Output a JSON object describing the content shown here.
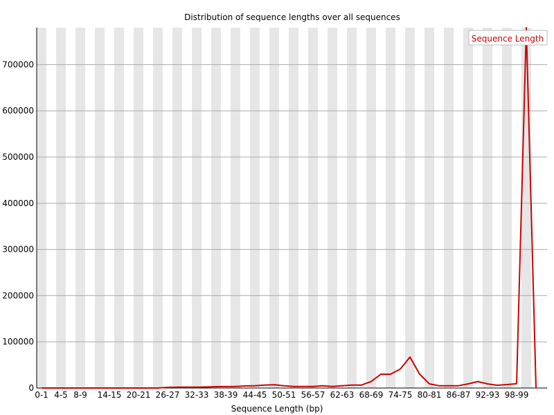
{
  "chart_data": {
    "type": "line",
    "title": "Distribution of sequence lengths over all sequences",
    "xlabel": "Sequence Length (bp)",
    "ylabel": "",
    "ylim": [
      0,
      780000
    ],
    "yticks": [
      0,
      100000,
      200000,
      300000,
      400000,
      500000,
      600000,
      700000
    ],
    "grid": "horizontal",
    "legend_position": "top-right",
    "categories": [
      "0-1",
      "2-3",
      "4-5",
      "6-7",
      "8-9",
      "10-11",
      "12-13",
      "14-15",
      "16-17",
      "18-19",
      "20-21",
      "22-23",
      "24-25",
      "26-27",
      "28-29",
      "30-31",
      "32-33",
      "34-35",
      "36-37",
      "38-39",
      "40-41",
      "42-43",
      "44-45",
      "46-47",
      "48-49",
      "50-51",
      "52-53",
      "54-55",
      "56-57",
      "58-59",
      "60-61",
      "62-63",
      "64-65",
      "66-67",
      "68-69",
      "70-71",
      "72-73",
      "74-75",
      "76-77",
      "78-79",
      "80-81",
      "82-83",
      "84-85",
      "86-87",
      "88-89",
      "90-91",
      "92-93",
      "94-95",
      "96-97",
      "98-99",
      "100-101",
      "102"
    ],
    "labeled_categories": [
      "0-1",
      "4-5",
      "8-9",
      "14-15",
      "20-21",
      "26-27",
      "32-33",
      "38-39",
      "44-45",
      "50-51",
      "56-57",
      "62-63",
      "68-69",
      "74-75",
      "80-81",
      "86-87",
      "92-93",
      "98-99"
    ],
    "series": [
      {
        "name": "Sequence Length",
        "color": "#cc0000",
        "values": [
          0,
          0,
          0,
          0,
          0,
          0,
          0,
          0,
          0,
          0,
          0,
          0,
          0,
          1500,
          1800,
          2000,
          2000,
          2200,
          3000,
          3200,
          3500,
          4500,
          5000,
          6500,
          7000,
          5000,
          3500,
          3500,
          3500,
          5000,
          3500,
          5000,
          6500,
          6500,
          14000,
          30000,
          30000,
          41000,
          67000,
          30000,
          9000,
          5000,
          5000,
          5000,
          9000,
          14000,
          9000,
          6000,
          7500,
          9500,
          780000,
          0
        ]
      }
    ]
  }
}
